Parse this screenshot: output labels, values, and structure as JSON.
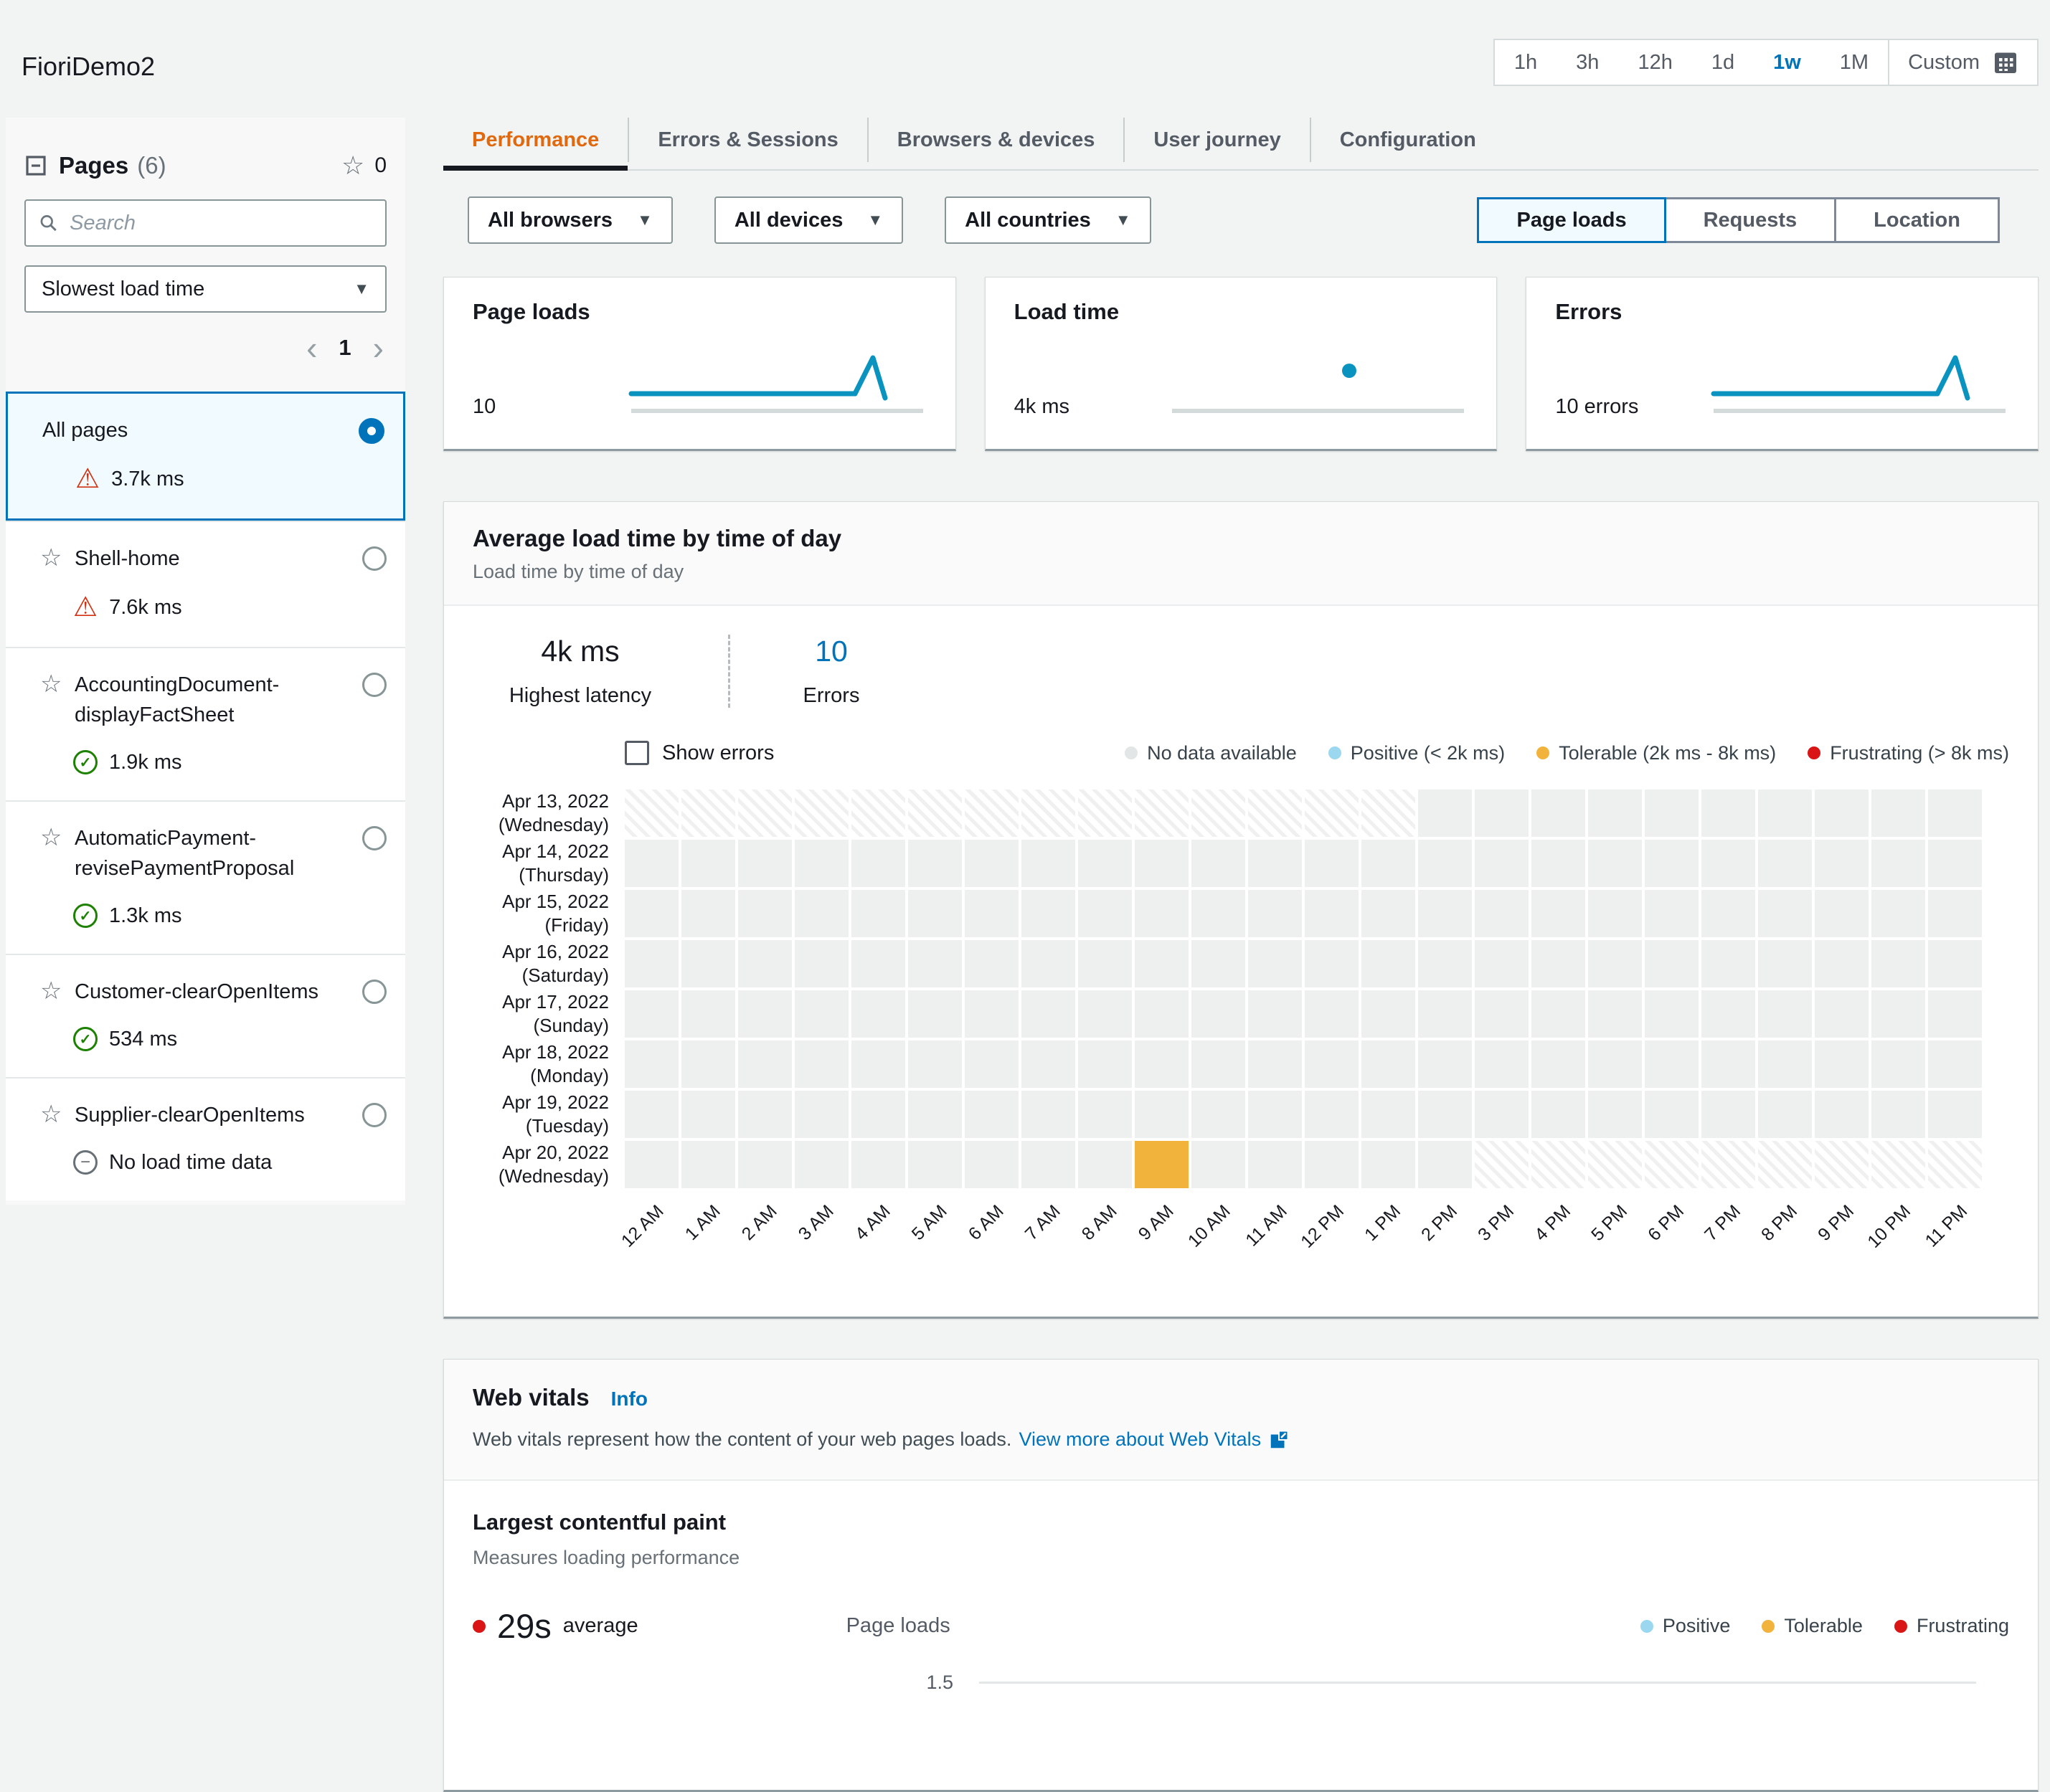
{
  "app_title": "FioriDemo2",
  "time_range": {
    "options": [
      "1h",
      "3h",
      "12h",
      "1d",
      "1w",
      "1M"
    ],
    "selected": "1w",
    "custom_label": "Custom"
  },
  "sidebar": {
    "title": "Pages",
    "count": "(6)",
    "favorites_count": "0",
    "search_placeholder": "Search",
    "sort_selected": "Slowest load time",
    "page_number": "1",
    "prev_glyph": "‹",
    "next_glyph": "›",
    "items": [
      {
        "name": "All pages",
        "value": "3.7k ms",
        "status": "warning",
        "selected": true,
        "starred": null
      },
      {
        "name": "Shell-home",
        "value": "7.6k ms",
        "status": "warning",
        "selected": false,
        "starred": false
      },
      {
        "name": "AccountingDocument-displayFactSheet",
        "value": "1.9k ms",
        "status": "ok",
        "selected": false,
        "starred": false
      },
      {
        "name": "AutomaticPayment-revisePaymentProposal",
        "value": "1.3k ms",
        "status": "ok",
        "selected": false,
        "starred": false
      },
      {
        "name": "Customer-clearOpenItems",
        "value": "534 ms",
        "status": "ok",
        "selected": false,
        "starred": false
      },
      {
        "name": "Supplier-clearOpenItems",
        "value": "No load time data",
        "status": "none",
        "selected": false,
        "starred": false
      }
    ]
  },
  "tabs": [
    {
      "label": "Performance",
      "active": true
    },
    {
      "label": "Errors & Sessions",
      "active": false
    },
    {
      "label": "Browsers & devices",
      "active": false
    },
    {
      "label": "User journey",
      "active": false
    },
    {
      "label": "Configuration",
      "active": false
    }
  ],
  "filters": [
    {
      "label": "All browsers"
    },
    {
      "label": "All devices"
    },
    {
      "label": "All countries"
    }
  ],
  "view_toggle": {
    "options": [
      "Page loads",
      "Requests",
      "Location"
    ],
    "selected": "Page loads"
  },
  "metric_cards": [
    {
      "title": "Page loads",
      "value": "10",
      "spark": "spike"
    },
    {
      "title": "Load time",
      "value": "4k ms",
      "spark": "dot"
    },
    {
      "title": "Errors",
      "value": "10 errors",
      "spark": "spike"
    }
  ],
  "heatmap": {
    "title": "Average load time by time of day",
    "subtitle": "Load time by time of day",
    "stats": [
      {
        "value": "4k ms",
        "label": "Highest latency"
      },
      {
        "value": "10",
        "label": "Errors"
      }
    ],
    "show_errors_label": "Show errors",
    "legend": [
      {
        "label": "No data available",
        "color": "#e3e6e6"
      },
      {
        "label": "Positive (< 2k ms)",
        "color": "#9bd8f0"
      },
      {
        "label": "Tolerable (2k ms - 8k ms)",
        "color": "#f2b33c"
      },
      {
        "label": "Frustrating (> 8k ms)",
        "color": "#d91515"
      }
    ],
    "hours": [
      "12 AM",
      "1 AM",
      "2 AM",
      "3 AM",
      "4 AM",
      "5 AM",
      "6 AM",
      "7 AM",
      "8 AM",
      "9 AM",
      "10 AM",
      "11 AM",
      "12 PM",
      "1 PM",
      "2 PM",
      "3 PM",
      "4 PM",
      "5 PM",
      "6 PM",
      "7 PM",
      "8 PM",
      "9 PM",
      "10 PM",
      "11 PM"
    ],
    "rows": [
      {
        "date": "Apr 13, 2022",
        "day": "(Wednesday)",
        "cells": "nnnnnnnnnnnnnneeeeeeeeee"
      },
      {
        "date": "Apr 14, 2022",
        "day": "(Thursday)",
        "cells": "eeeeeeeeeeeeeeeeeeeeeeee"
      },
      {
        "date": "Apr 15, 2022",
        "day": "(Friday)",
        "cells": "eeeeeeeeeeeeeeeeeeeeeeee"
      },
      {
        "date": "Apr 16, 2022",
        "day": "(Saturday)",
        "cells": "eeeeeeeeeeeeeeeeeeeeeeee"
      },
      {
        "date": "Apr 17, 2022",
        "day": "(Sunday)",
        "cells": "eeeeeeeeeeeeeeeeeeeeeeee"
      },
      {
        "date": "Apr 18, 2022",
        "day": "(Monday)",
        "cells": "eeeeeeeeeeeeeeeeeeeeeeee"
      },
      {
        "date": "Apr 19, 2022",
        "day": "(Tuesday)",
        "cells": "eeeeeeeeeeeeeeeeeeeeeeee"
      },
      {
        "date": "Apr 20, 2022",
        "day": "(Wednesday)",
        "cells": "eeeeeeeeeteeeeennnnnnnnn"
      }
    ]
  },
  "web_vitals": {
    "title": "Web vitals",
    "info_label": "Info",
    "description": "Web vitals represent how the content of your web pages loads.",
    "link_label": "View more about Web Vitals",
    "lcp": {
      "title": "Largest contentful paint",
      "subtitle": "Measures loading performance",
      "average_value": "29s",
      "average_label": "average",
      "axis_label": "Page loads",
      "first_tick": "1.5",
      "legend": [
        {
          "label": "Positive",
          "color": "#9bd8f0"
        },
        {
          "label": "Tolerable",
          "color": "#f2b33c"
        },
        {
          "label": "Frustrating",
          "color": "#d91515"
        }
      ]
    }
  },
  "chart_data": [
    {
      "type": "heatmap",
      "title": "Average load time by time of day",
      "x_labels_hours": "12 AM through 11 PM",
      "y_labels_dates": [
        "Apr 13, 2022 (Wednesday)",
        "Apr 14, 2022 (Thursday)",
        "Apr 15, 2022 (Friday)",
        "Apr 16, 2022 (Saturday)",
        "Apr 17, 2022 (Sunday)",
        "Apr 18, 2022 (Monday)",
        "Apr 19, 2022 (Tuesday)",
        "Apr 20, 2022 (Wednesday)"
      ],
      "notes": "Apr 13 hatched/no-data 12 AM-1 PM; Apr 20 hatched/no-data 3 PM-11 PM; single tolerable (2k-8k ms) cell on Apr 20 at 9 AM; all other cells gray (no page loads)"
    },
    {
      "type": "line",
      "title": "Page loads sparkline",
      "values": [
        0,
        0,
        0,
        0,
        0,
        10,
        0
      ],
      "note": "flat line with single spike near right end, total 10"
    },
    {
      "type": "scatter",
      "title": "Load time sparkline",
      "values": [
        4000
      ],
      "note": "single point at 4k ms above flat baseline"
    },
    {
      "type": "line",
      "title": "Errors sparkline",
      "values": [
        0,
        0,
        0,
        0,
        0,
        10,
        0
      ],
      "note": "flat line with single spike near right end, total 10 errors"
    }
  ]
}
